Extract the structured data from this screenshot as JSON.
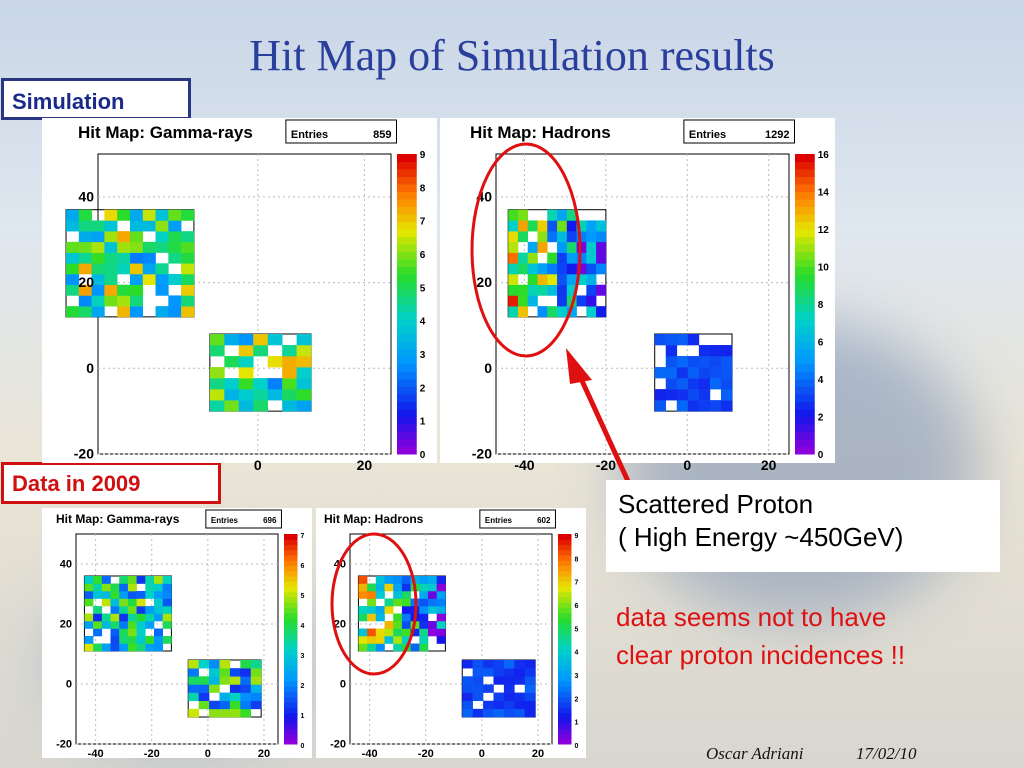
{
  "slide": {
    "title": "Hit Map of Simulation results",
    "sim_label": "Simulation",
    "data_label": "Data in 2009",
    "callout_line1": "Scattered Proton",
    "callout_line2": "( High Energy ~450GeV)",
    "note_line1": "data seems not to have",
    "note_line2": "clear proton incidences !!",
    "author": "Oscar Adriani",
    "date": "17/02/10",
    "colors": {
      "title": "#2a3f9d",
      "sim_box": "#2a3584",
      "data_box": "#d01010",
      "annotation": "#e01010"
    }
  },
  "chart_data": [
    {
      "type": "heatmap",
      "title": "Hit Map: Gamma-rays",
      "entries_label": "Entries",
      "entries": "859",
      "x_ticks": [
        "0",
        "20"
      ],
      "y_ticks": [
        "-20",
        "0",
        "20",
        "40"
      ],
      "colorbar_ticks": [
        "0",
        "1",
        "2",
        "3",
        "4",
        "5",
        "6",
        "7",
        "8",
        "9"
      ],
      "zmax": 9
    },
    {
      "type": "heatmap",
      "title": "Hit Map: Hadrons",
      "entries_label": "Entries",
      "entries": "1292",
      "x_ticks": [
        "-40",
        "-20",
        "0",
        "20"
      ],
      "y_ticks": [
        "-20",
        "0",
        "20",
        "40"
      ],
      "colorbar_ticks": [
        "0",
        "2",
        "4",
        "6",
        "8",
        "10",
        "12",
        "14",
        "16"
      ],
      "zmax": 16
    },
    {
      "type": "heatmap",
      "title": "Hit Map: Gamma-rays",
      "entries_label": "Entries",
      "entries": "696",
      "x_ticks": [
        "-40",
        "-20",
        "0",
        "20"
      ],
      "y_ticks": [
        "-20",
        "0",
        "20",
        "40"
      ],
      "colorbar_ticks": [
        "0",
        "1",
        "2",
        "3",
        "4",
        "5",
        "6",
        "7"
      ],
      "zmax": 7
    },
    {
      "type": "heatmap",
      "title": "Hit Map: Hadrons",
      "entries_label": "Entries",
      "entries": "602",
      "x_ticks": [
        "-40",
        "-20",
        "0",
        "20"
      ],
      "y_ticks": [
        "-20",
        "0",
        "20",
        "40"
      ],
      "colorbar_ticks": [
        "0",
        "1",
        "2",
        "3",
        "4",
        "5",
        "6",
        "7",
        "8",
        "9"
      ],
      "zmax": 9
    }
  ]
}
